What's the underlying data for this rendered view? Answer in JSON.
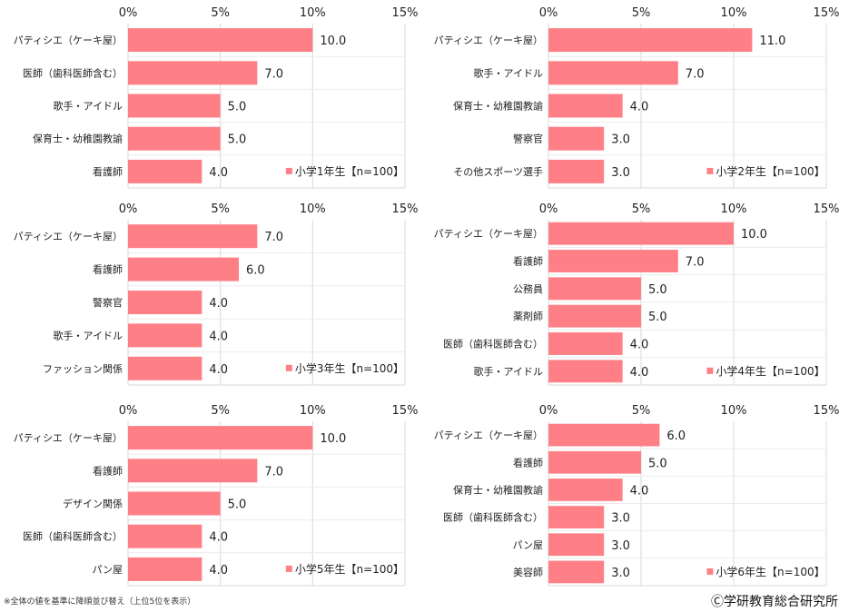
{
  "chart_data": [
    {
      "type": "bar",
      "legend": "小学1年生【n=100】",
      "categories": [
        "パティシエ（ケーキ屋）",
        "医師（歯科医師含む）",
        "歌手・アイドル",
        "保育士・幼稚園教諭",
        "看護師"
      ],
      "values": [
        10.0,
        7.0,
        5.0,
        5.0,
        4.0
      ],
      "value_labels": [
        "10.0",
        "7.0",
        "5.0",
        "5.0",
        "4.0"
      ],
      "xlim": [
        0,
        15
      ],
      "xticks": [
        "0%",
        "5%",
        "10%",
        "15%"
      ]
    },
    {
      "type": "bar",
      "legend": "小学2年生【n=100】",
      "categories": [
        "パティシエ（ケーキ屋）",
        "歌手・アイドル",
        "保育士・幼稚園教諭",
        "警察官",
        "その他スポーツ選手"
      ],
      "values": [
        11.0,
        7.0,
        4.0,
        3.0,
        3.0
      ],
      "value_labels": [
        "11.0",
        "7.0",
        "4.0",
        "3.0",
        "3.0"
      ],
      "xlim": [
        0,
        15
      ],
      "xticks": [
        "0%",
        "5%",
        "10%",
        "15%"
      ]
    },
    {
      "type": "bar",
      "legend": "小学3年生【n=100】",
      "categories": [
        "パティシエ（ケーキ屋）",
        "看護師",
        "警察官",
        "歌手・アイドル",
        "ファッション関係"
      ],
      "values": [
        7.0,
        6.0,
        4.0,
        4.0,
        4.0
      ],
      "value_labels": [
        "7.0",
        "6.0",
        "4.0",
        "4.0",
        "4.0"
      ],
      "xlim": [
        0,
        15
      ],
      "xticks": [
        "0%",
        "5%",
        "10%",
        "15%"
      ]
    },
    {
      "type": "bar",
      "legend": "小学4年生【n=100】",
      "categories": [
        "パティシエ（ケーキ屋）",
        "看護師",
        "公務員",
        "薬剤師",
        "医師（歯科医師含む）",
        "歌手・アイドル"
      ],
      "values": [
        10.0,
        7.0,
        5.0,
        5.0,
        4.0,
        4.0
      ],
      "value_labels": [
        "10.0",
        "7.0",
        "5.0",
        "5.0",
        "4.0",
        "4.0"
      ],
      "xlim": [
        0,
        15
      ],
      "xticks": [
        "0%",
        "5%",
        "10%",
        "15%"
      ]
    },
    {
      "type": "bar",
      "legend": "小学5年生【n=100】",
      "categories": [
        "パティシエ（ケーキ屋）",
        "看護師",
        "デザイン関係",
        "医師（歯科医師含む）",
        "パン屋"
      ],
      "values": [
        10.0,
        7.0,
        5.0,
        4.0,
        4.0
      ],
      "value_labels": [
        "10.0",
        "7.0",
        "5.0",
        "4.0",
        "4.0"
      ],
      "xlim": [
        0,
        15
      ],
      "xticks": [
        "0%",
        "5%",
        "10%",
        "15%"
      ]
    },
    {
      "type": "bar",
      "legend": "小学6年生【n=100】",
      "categories": [
        "パティシエ（ケーキ屋）",
        "看護師",
        "保育士・幼稚園教諭",
        "医師（歯科医師含む）",
        "パン屋",
        "美容師"
      ],
      "values": [
        6.0,
        5.0,
        4.0,
        3.0,
        3.0,
        3.0
      ],
      "value_labels": [
        "6.0",
        "5.0",
        "4.0",
        "3.0",
        "3.0",
        "3.0"
      ],
      "xlim": [
        0,
        15
      ],
      "xticks": [
        "0%",
        "5%",
        "10%",
        "15%"
      ]
    }
  ],
  "colors": {
    "bar": "#ff7f86",
    "grid": "#d9d9d9",
    "text": "#222222"
  },
  "footnote": "※全体の値を基準に降順並び替え（上位5位を表示）",
  "copyright": "Ⓒ学研教育総合研究所"
}
